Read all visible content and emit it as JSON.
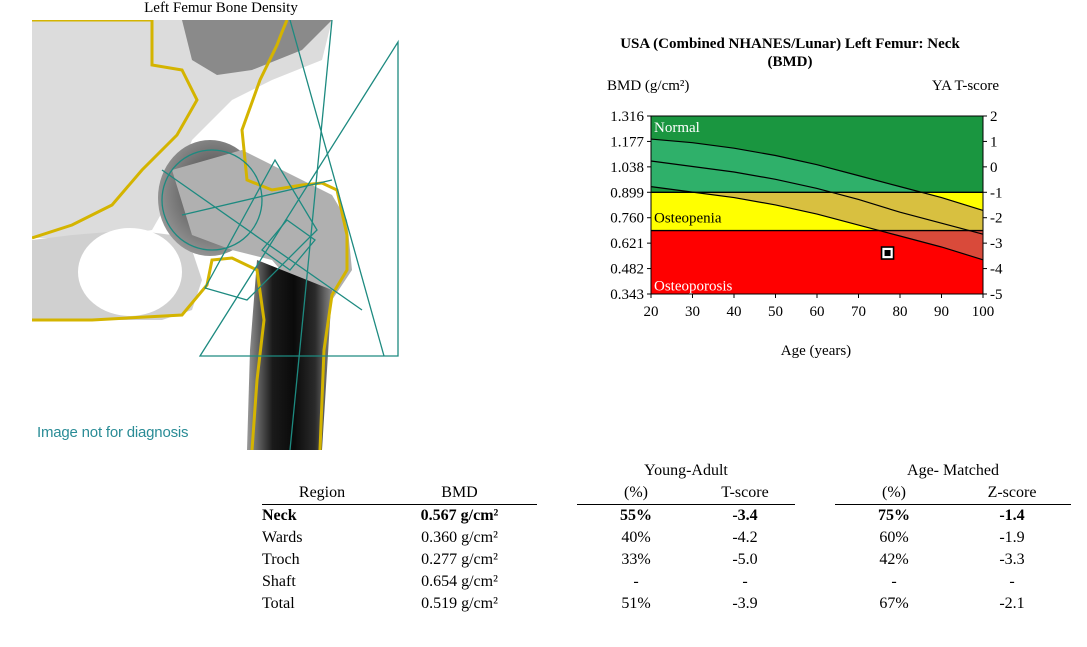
{
  "scan": {
    "title": "Left Femur Bone Density",
    "disclaimer": "Image not for diagnosis"
  },
  "chart_data": {
    "type": "line",
    "title": "USA (Combined NHANES/Lunar) Left Femur: Neck (BMD)",
    "title_line1": "USA (Combined NHANES/Lunar) Left Femur: Neck",
    "title_line2": "(BMD)",
    "ylabel": "BMD (g/cm²)",
    "y2label": "YA T-score",
    "xlabel": "Age (years)",
    "xlim": [
      20,
      100
    ],
    "ylim": [
      0.343,
      1.316
    ],
    "x_ticks": [
      20,
      30,
      40,
      50,
      60,
      70,
      80,
      90,
      100
    ],
    "y_ticks": [
      "1.316",
      "1.177",
      "1.038",
      "0.899",
      "0.760",
      "0.621",
      "0.482",
      "0.343"
    ],
    "y2_ticks": [
      "2",
      "1",
      "0",
      "-1",
      "-2",
      "-3",
      "-4",
      "-5"
    ],
    "zones": [
      {
        "name": "Normal",
        "from": 0.899,
        "to": 1.316,
        "color": "#1a9640"
      },
      {
        "name": "Osteopenia",
        "from": 0.69,
        "to": 0.899,
        "color": "#ffff00"
      },
      {
        "name": "Osteoporosis",
        "from": 0.343,
        "to": 0.69,
        "color": "#ff0000"
      }
    ],
    "series": [
      {
        "x": [
          20,
          30,
          40,
          50,
          60,
          70,
          80,
          90,
          100
        ],
        "values": [
          1.19,
          1.17,
          1.14,
          1.1,
          1.05,
          0.99,
          0.93,
          0.87,
          0.8
        ]
      },
      {
        "x": [
          20,
          30,
          40,
          50,
          60,
          70,
          80,
          90,
          100
        ],
        "values": [
          1.07,
          1.04,
          1.01,
          0.97,
          0.92,
          0.86,
          0.79,
          0.73,
          0.67
        ]
      },
      {
        "x": [
          20,
          30,
          40,
          50,
          60,
          70,
          80,
          90,
          100
        ],
        "values": [
          0.93,
          0.9,
          0.87,
          0.83,
          0.78,
          0.72,
          0.66,
          0.6,
          0.53
        ]
      }
    ],
    "patient": {
      "age": 77,
      "bmd": 0.567
    }
  },
  "table": {
    "groups": {
      "young_adult": "Young-Adult",
      "age_matched": "Age- Matched"
    },
    "headers": {
      "region": "Region",
      "bmd": "BMD",
      "ya_pct": "(%)",
      "ya_t": "T-score",
      "am_pct": "(%)",
      "am_z": "Z-score"
    },
    "rows": [
      {
        "region": "Neck",
        "bmd": "0.567 g/cm²",
        "ya_pct": "55%",
        "ya_t": "-3.4",
        "am_pct": "75%",
        "am_z": "-1.4"
      },
      {
        "region": "Wards",
        "bmd": "0.360 g/cm²",
        "ya_pct": "40%",
        "ya_t": "-4.2",
        "am_pct": "60%",
        "am_z": "-1.9"
      },
      {
        "region": "Troch",
        "bmd": "0.277 g/cm²",
        "ya_pct": "33%",
        "ya_t": "-5.0",
        "am_pct": "42%",
        "am_z": "-3.3"
      },
      {
        "region": "Shaft",
        "bmd": "0.654 g/cm²",
        "ya_pct": "-",
        "ya_t": "-",
        "am_pct": "-",
        "am_z": "-"
      },
      {
        "region": "Total",
        "bmd": "0.519 g/cm²",
        "ya_pct": "51%",
        "ya_t": "-3.9",
        "am_pct": "67%",
        "am_z": "-2.1"
      }
    ]
  },
  "colors": {
    "contour": "#d4b400",
    "roi_lines": "#1d8a80",
    "disclaimer": "#2a8c96",
    "band_normal": "#2fb06a",
    "band_osteopenia": "#d8c040",
    "band_osteoporosis": "#d94a3a"
  }
}
